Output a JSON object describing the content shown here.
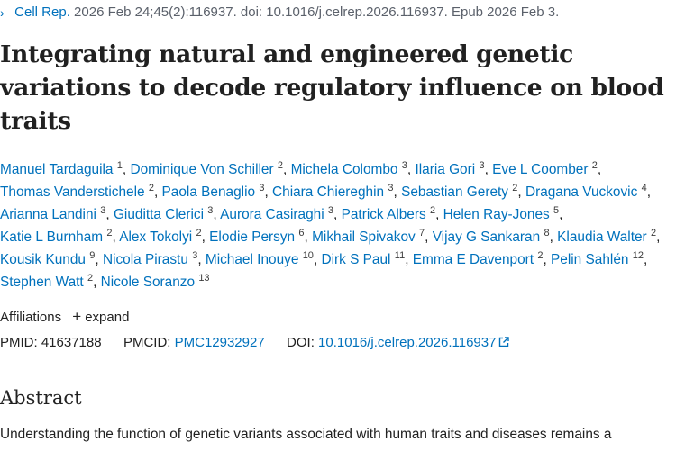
{
  "citation": {
    "journal": "Cell Rep.",
    "details": "2026 Feb 24;45(2):116937. doi: 10.1016/j.celrep.2026.116937. Epub 2026 Feb 3."
  },
  "title": "Integrating natural and engineered genetic variations to decode regulatory influence on blood traits",
  "authors": [
    {
      "name": "Manuel Tardaguila",
      "aff": "1"
    },
    {
      "name": "Dominique Von Schiller",
      "aff": "2"
    },
    {
      "name": "Michela Colombo",
      "aff": "3"
    },
    {
      "name": "Ilaria Gori",
      "aff": "3"
    },
    {
      "name": "Eve L Coomber",
      "aff": "2"
    },
    {
      "name": "Thomas Vanderstichele",
      "aff": "2"
    },
    {
      "name": "Paola Benaglio",
      "aff": "3"
    },
    {
      "name": "Chiara Chiereghin",
      "aff": "3"
    },
    {
      "name": "Sebastian Gerety",
      "aff": "2"
    },
    {
      "name": "Dragana Vuckovic",
      "aff": "4"
    },
    {
      "name": "Arianna Landini",
      "aff": "3"
    },
    {
      "name": "Giuditta Clerici",
      "aff": "3"
    },
    {
      "name": "Aurora Casiraghi",
      "aff": "3"
    },
    {
      "name": "Patrick Albers",
      "aff": "2"
    },
    {
      "name": "Helen Ray-Jones",
      "aff": "5"
    },
    {
      "name": "Katie L Burnham",
      "aff": "2"
    },
    {
      "name": "Alex Tokolyi",
      "aff": "2"
    },
    {
      "name": "Elodie Persyn",
      "aff": "6"
    },
    {
      "name": "Mikhail Spivakov",
      "aff": "7"
    },
    {
      "name": "Vijay G Sankaran",
      "aff": "8"
    },
    {
      "name": "Klaudia Walter",
      "aff": "2"
    },
    {
      "name": "Kousik Kundu",
      "aff": "9"
    },
    {
      "name": "Nicola Pirastu",
      "aff": "3"
    },
    {
      "name": "Michael Inouye",
      "aff": "10"
    },
    {
      "name": "Dirk S Paul",
      "aff": "11"
    },
    {
      "name": "Emma E Davenport",
      "aff": "2"
    },
    {
      "name": "Pelin Sahlén",
      "aff": "12"
    },
    {
      "name": "Stephen Watt",
      "aff": "2"
    },
    {
      "name": "Nicole Soranzo",
      "aff": "13"
    }
  ],
  "affiliations": {
    "label": "Affiliations",
    "expand_label": "expand"
  },
  "ids": {
    "pmid_label": "PMID:",
    "pmid": "41637188",
    "pmcid_label": "PMCID:",
    "pmcid": "PMC12932927",
    "doi_label": "DOI:",
    "doi": "10.1016/j.celrep.2026.116937"
  },
  "abstract": {
    "heading": "Abstract",
    "text": "Understanding the function of genetic variants associated with human traits and diseases remains a"
  },
  "colors": {
    "link": "#0071bc",
    "text": "#212121",
    "muted": "#5b616b"
  },
  "icons": {
    "chevron": "chevron-right-icon",
    "plus": "plus-icon",
    "external": "external-link-icon"
  }
}
